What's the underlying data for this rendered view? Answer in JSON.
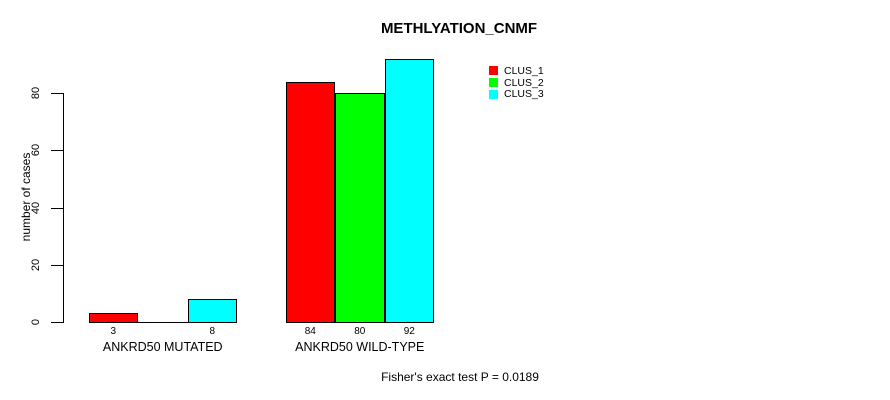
{
  "title": "METHLYATION_CNMF",
  "ylabel": "number of cases",
  "footer": "Fisher's exact test P = 0.0189",
  "legend": {
    "items": [
      {
        "label": "CLUS_1",
        "color": "#ff0000"
      },
      {
        "label": "CLUS_2",
        "color": "#00ff00"
      },
      {
        "label": "CLUS_3",
        "color": "#00ffff"
      }
    ]
  },
  "chart_data": {
    "type": "bar",
    "title": "METHLYATION_CNMF",
    "xlabel": "",
    "ylabel": "number of cases",
    "categories": [
      "ANKRD50 MUTATED",
      "ANKRD50 WILD-TYPE"
    ],
    "series": [
      {
        "name": "CLUS_1",
        "color": "#ff0000",
        "values": [
          3,
          84
        ],
        "bar_labels": [
          "3",
          "84"
        ]
      },
      {
        "name": "CLUS_2",
        "color": "#00ff00",
        "values": [
          0,
          80
        ],
        "bar_labels": [
          "",
          "80"
        ]
      },
      {
        "name": "CLUS_3",
        "color": "#00ffff",
        "values": [
          8,
          92
        ],
        "bar_labels": [
          "8",
          "92"
        ]
      }
    ],
    "ylim": [
      0,
      92
    ],
    "y_ticks": [
      0,
      20,
      40,
      60,
      80
    ],
    "grid": false,
    "legend_position": "top-right",
    "annotation": "Fisher's exact test P = 0.0189"
  }
}
